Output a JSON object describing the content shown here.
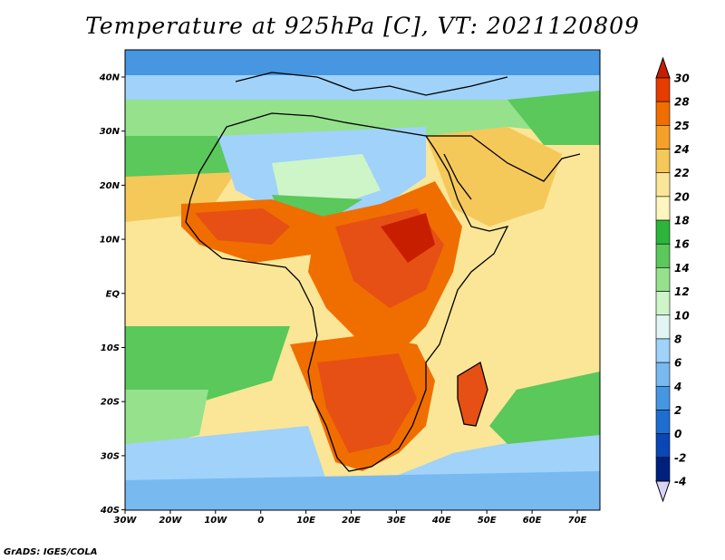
{
  "title": "Temperature at 925hPa [C], VT: 2021120809",
  "credit": "GrADS: IGES/COLA",
  "lon_labels": [
    "30W",
    "20W",
    "10W",
    "0",
    "10E",
    "20E",
    "30E",
    "40E",
    "50E",
    "60E",
    "70E"
  ],
  "lat_labels": [
    "40N",
    "30N",
    "20N",
    "10N",
    "EQ",
    "10S",
    "20S",
    "30S",
    "40S"
  ],
  "colorbar": {
    "labels": [
      "30",
      "28",
      "25",
      "24",
      "22",
      "20",
      "18",
      "16",
      "14",
      "12",
      "10",
      "8",
      "6",
      "4",
      "2",
      "0",
      "-2",
      "-4"
    ],
    "colors": [
      "#c81e00",
      "#e63c00",
      "#f06e00",
      "#f5a028",
      "#f5c85a",
      "#fae696",
      "#fff5be",
      "#2db43c",
      "#5ac85a",
      "#96e18c",
      "#cdf5c8",
      "#e1f5f5",
      "#a0d2fa",
      "#78b9f0",
      "#4696e1",
      "#1e6ed2",
      "#0a46b4",
      "#00207d",
      "#000a50"
    ]
  },
  "map": {
    "extent_lon": [
      -30,
      75
    ],
    "extent_lat": [
      -40,
      45
    ],
    "ocean_color": "#fae696",
    "cold_ocean_color": "#78b9f0",
    "land_hot_color": "#e65014",
    "land_warm_color": "#f5a028",
    "sahara_color": "#a0d2fa"
  }
}
